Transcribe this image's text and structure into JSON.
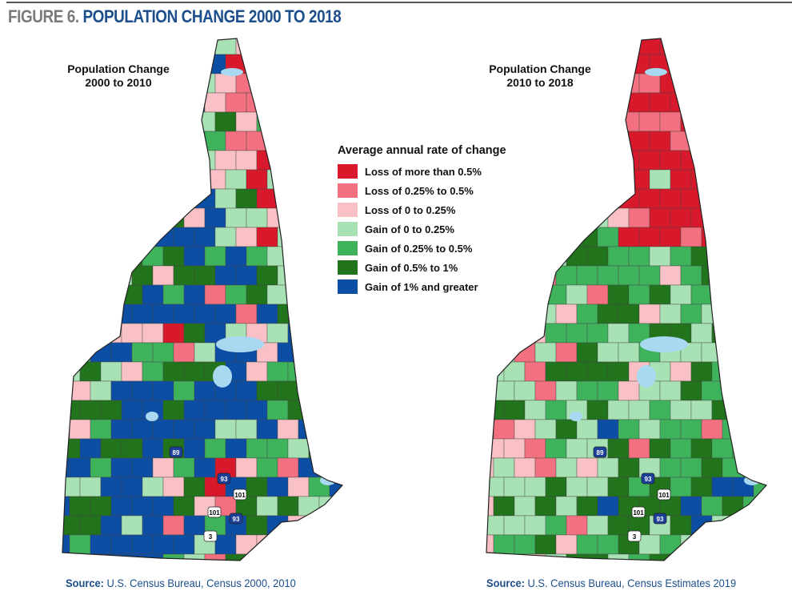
{
  "figure": {
    "label": "FIGURE 6.",
    "title": "POPULATION CHANGE 2000 TO 2018"
  },
  "maps": [
    {
      "title_line1": "Population Change",
      "title_line2": "2000 to 2010",
      "source_label": "Source:",
      "source_text": "U.S. Census Bureau, Census 2000, 2010"
    },
    {
      "title_line1": "Population Change",
      "title_line2": "2010 to 2018",
      "source_label": "Source:",
      "source_text": "U.S. Census Bureau, Census Estimates 2019"
    }
  ],
  "legend": {
    "title": "Average annual rate of change",
    "items": [
      {
        "label": "Loss of more than 0.5%",
        "color": "#d7192b"
      },
      {
        "label": "Loss of 0.25% to 0.5%",
        "color": "#f2707f"
      },
      {
        "label": "Loss of 0 to 0.25%",
        "color": "#f9c0c5"
      },
      {
        "label": "Gain of 0 to 0.25%",
        "color": "#a8e2b4"
      },
      {
        "label": "Gain of 0.25% to 0.5%",
        "color": "#3fb35c"
      },
      {
        "label": "Gain of 0.5% to 1%",
        "color": "#21731c"
      },
      {
        "label": "Gain of 1% and greater",
        "color": "#0d4ea5"
      }
    ]
  },
  "route_shields": [
    "89",
    "93",
    "101",
    "3"
  ]
}
